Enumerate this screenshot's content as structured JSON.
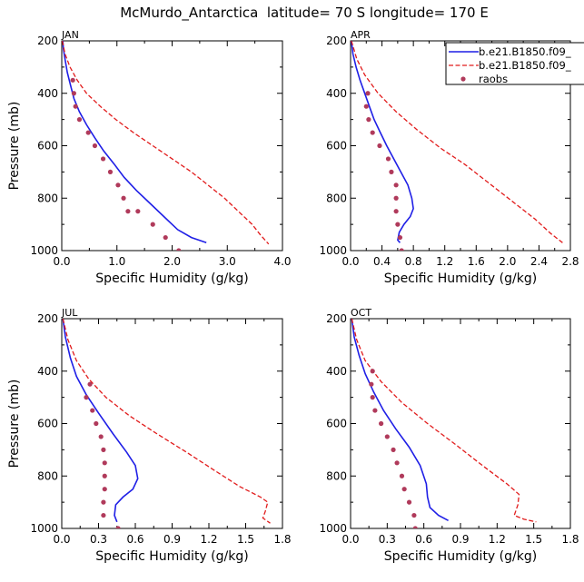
{
  "figure": {
    "title": "McMurdo_Antarctica  latitude= 70 S longitude= 170 E"
  },
  "colors": {
    "model1": "#1f1fe6",
    "model2": "#e11b1b",
    "raobs": "#b03a5b"
  },
  "legend": {
    "entries": [
      {
        "name": "b.e21.B1850.f09_",
        "style": "solid-line",
        "color": "#1f1fe6"
      },
      {
        "name": "b.e21.B1850.f09_",
        "style": "dashed-line",
        "color": "#e11b1b"
      },
      {
        "name": "raobs",
        "style": "dots",
        "color": "#b03a5b"
      }
    ]
  },
  "chart_data": [
    {
      "type": "line",
      "panel_label": "JAN",
      "xlabel": "Specific Humidity (g/kg)",
      "ylabel": "Pressure (mb)",
      "xlim": [
        0,
        4.0
      ],
      "ylim": [
        200,
        1000
      ],
      "y_inverted": true,
      "xticks": [
        "0.0",
        "1.0",
        "2.0",
        "3.0",
        "4.0"
      ],
      "xtick_values": [
        0,
        1,
        2,
        3,
        4
      ],
      "yticks": [
        "200",
        "400",
        "600",
        "800",
        "1000"
      ],
      "series": [
        {
          "legend_index": 0,
          "style": "solid",
          "points": [
            [
              0.02,
              200
            ],
            [
              0.03,
              230
            ],
            [
              0.06,
              270
            ],
            [
              0.1,
              320
            ],
            [
              0.16,
              370
            ],
            [
              0.22,
              420
            ],
            [
              0.32,
              470
            ],
            [
              0.45,
              520
            ],
            [
              0.6,
              570
            ],
            [
              0.76,
              620
            ],
            [
              0.95,
              670
            ],
            [
              1.13,
              720
            ],
            [
              1.35,
              770
            ],
            [
              1.6,
              820
            ],
            [
              1.85,
              870
            ],
            [
              2.1,
              920
            ],
            [
              2.35,
              950
            ],
            [
              2.62,
              970
            ]
          ]
        },
        {
          "legend_index": 1,
          "style": "dashed",
          "points": [
            [
              0.01,
              200
            ],
            [
              0.06,
              250
            ],
            [
              0.15,
              300
            ],
            [
              0.28,
              350
            ],
            [
              0.45,
              400
            ],
            [
              0.7,
              450
            ],
            [
              0.98,
              500
            ],
            [
              1.3,
              550
            ],
            [
              1.65,
              600
            ],
            [
              2.0,
              650
            ],
            [
              2.35,
              700
            ],
            [
              2.65,
              750
            ],
            [
              2.95,
              800
            ],
            [
              3.2,
              850
            ],
            [
              3.45,
              900
            ],
            [
              3.6,
              940
            ],
            [
              3.75,
              975
            ]
          ]
        },
        {
          "legend_index": 2,
          "style": "dots",
          "points": [
            [
              0.2,
              350
            ],
            [
              0.22,
              400
            ],
            [
              0.25,
              450
            ],
            [
              0.32,
              500
            ],
            [
              0.48,
              550
            ],
            [
              0.6,
              600
            ],
            [
              0.75,
              650
            ],
            [
              0.88,
              700
            ],
            [
              1.02,
              750
            ],
            [
              1.12,
              800
            ],
            [
              1.2,
              850
            ],
            [
              1.38,
              850
            ],
            [
              1.65,
              900
            ],
            [
              1.88,
              950
            ],
            [
              2.12,
              1000
            ]
          ]
        }
      ]
    },
    {
      "type": "line",
      "panel_label": "APR",
      "xlabel": "Specific Humidity (g/kg)",
      "ylabel": "",
      "xlim": [
        0,
        2.8
      ],
      "ylim": [
        200,
        1000
      ],
      "y_inverted": true,
      "xticks": [
        "0.0",
        "0.4",
        "0.8",
        "1.2",
        "1.6",
        "2.0",
        "2.4",
        "2.8"
      ],
      "xtick_values": [
        0,
        0.4,
        0.8,
        1.2,
        1.6,
        2.0,
        2.4,
        2.8
      ],
      "yticks": [
        "200",
        "400",
        "600",
        "800",
        "1000"
      ],
      "series": [
        {
          "legend_index": 0,
          "style": "solid",
          "points": [
            [
              0.01,
              200
            ],
            [
              0.03,
              250
            ],
            [
              0.07,
              300
            ],
            [
              0.12,
              350
            ],
            [
              0.18,
              400
            ],
            [
              0.24,
              450
            ],
            [
              0.3,
              500
            ],
            [
              0.38,
              550
            ],
            [
              0.46,
              600
            ],
            [
              0.55,
              650
            ],
            [
              0.64,
              700
            ],
            [
              0.73,
              750
            ],
            [
              0.78,
              800
            ],
            [
              0.8,
              840
            ],
            [
              0.76,
              870
            ],
            [
              0.68,
              900
            ],
            [
              0.62,
              930
            ],
            [
              0.6,
              960
            ],
            [
              0.63,
              970
            ]
          ]
        },
        {
          "legend_index": 1,
          "style": "dashed",
          "points": [
            [
              0.01,
              200
            ],
            [
              0.08,
              270
            ],
            [
              0.18,
              330
            ],
            [
              0.35,
              400
            ],
            [
              0.58,
              470
            ],
            [
              0.85,
              540
            ],
            [
              1.15,
              610
            ],
            [
              1.45,
              670
            ],
            [
              1.75,
              740
            ],
            [
              2.05,
              810
            ],
            [
              2.35,
              880
            ],
            [
              2.55,
              935
            ],
            [
              2.7,
              970
            ]
          ]
        },
        {
          "legend_index": 2,
          "style": "dots",
          "points": [
            [
              0.22,
              400
            ],
            [
              0.2,
              450
            ],
            [
              0.23,
              500
            ],
            [
              0.28,
              550
            ],
            [
              0.37,
              600
            ],
            [
              0.48,
              650
            ],
            [
              0.52,
              700
            ],
            [
              0.58,
              750
            ],
            [
              0.58,
              800
            ],
            [
              0.58,
              850
            ],
            [
              0.6,
              900
            ],
            [
              0.63,
              950
            ],
            [
              0.65,
              1000
            ]
          ]
        }
      ]
    },
    {
      "type": "line",
      "panel_label": "JUL",
      "xlabel": "Specific Humidity (g/kg)",
      "ylabel": "Pressure (mb)",
      "xlim": [
        0,
        1.8
      ],
      "ylim": [
        200,
        1000
      ],
      "y_inverted": true,
      "xticks": [
        "0.0",
        "0.3",
        "0.6",
        "0.9",
        "1.2",
        "1.5",
        "1.8"
      ],
      "xtick_values": [
        0,
        0.3,
        0.6,
        0.9,
        1.2,
        1.5,
        1.8
      ],
      "yticks": [
        "200",
        "400",
        "600",
        "800",
        "1000"
      ],
      "series": [
        {
          "legend_index": 0,
          "style": "solid",
          "points": [
            [
              0.01,
              200
            ],
            [
              0.03,
              270
            ],
            [
              0.07,
              350
            ],
            [
              0.12,
              420
            ],
            [
              0.2,
              490
            ],
            [
              0.3,
              560
            ],
            [
              0.42,
              640
            ],
            [
              0.53,
              710
            ],
            [
              0.6,
              760
            ],
            [
              0.62,
              810
            ],
            [
              0.58,
              850
            ],
            [
              0.5,
              880
            ],
            [
              0.44,
              910
            ],
            [
              0.43,
              950
            ],
            [
              0.45,
              975
            ]
          ]
        },
        {
          "legend_index": 1,
          "style": "dashed",
          "points": [
            [
              0.01,
              200
            ],
            [
              0.05,
              280
            ],
            [
              0.12,
              360
            ],
            [
              0.22,
              430
            ],
            [
              0.36,
              500
            ],
            [
              0.55,
              570
            ],
            [
              0.78,
              640
            ],
            [
              1.02,
              710
            ],
            [
              1.25,
              780
            ],
            [
              1.45,
              840
            ],
            [
              1.62,
              880
            ],
            [
              1.68,
              900
            ],
            [
              1.66,
              935
            ],
            [
              1.64,
              960
            ],
            [
              1.7,
              980
            ]
          ]
        },
        {
          "legend_index": 2,
          "style": "dots",
          "points": [
            [
              0.23,
              450
            ],
            [
              0.2,
              500
            ],
            [
              0.25,
              550
            ],
            [
              0.28,
              600
            ],
            [
              0.32,
              650
            ],
            [
              0.34,
              700
            ],
            [
              0.35,
              750
            ],
            [
              0.35,
              800
            ],
            [
              0.35,
              850
            ],
            [
              0.34,
              900
            ],
            [
              0.34,
              950
            ],
            [
              0.46,
              1000
            ]
          ]
        }
      ]
    },
    {
      "type": "line",
      "panel_label": "OCT",
      "xlabel": "Specific Humidity (g/kg)",
      "ylabel": "",
      "xlim": [
        0,
        1.8
      ],
      "ylim": [
        200,
        1000
      ],
      "y_inverted": true,
      "xticks": [
        "0.0",
        "0.3",
        "0.6",
        "0.9",
        "1.2",
        "1.5",
        "1.8"
      ],
      "xtick_values": [
        0,
        0.3,
        0.6,
        0.9,
        1.2,
        1.5,
        1.8
      ],
      "yticks": [
        "200",
        "400",
        "600",
        "800",
        "1000"
      ],
      "series": [
        {
          "legend_index": 0,
          "style": "solid",
          "points": [
            [
              0.01,
              200
            ],
            [
              0.03,
              270
            ],
            [
              0.07,
              340
            ],
            [
              0.12,
              410
            ],
            [
              0.19,
              480
            ],
            [
              0.27,
              550
            ],
            [
              0.37,
              620
            ],
            [
              0.48,
              690
            ],
            [
              0.57,
              760
            ],
            [
              0.62,
              830
            ],
            [
              0.63,
              880
            ],
            [
              0.65,
              920
            ],
            [
              0.72,
              950
            ],
            [
              0.8,
              970
            ]
          ]
        },
        {
          "legend_index": 1,
          "style": "dashed",
          "points": [
            [
              0.01,
              200
            ],
            [
              0.05,
              280
            ],
            [
              0.12,
              360
            ],
            [
              0.25,
              440
            ],
            [
              0.42,
              520
            ],
            [
              0.63,
              600
            ],
            [
              0.86,
              680
            ],
            [
              1.08,
              760
            ],
            [
              1.28,
              830
            ],
            [
              1.38,
              870
            ],
            [
              1.37,
              910
            ],
            [
              1.34,
              950
            ],
            [
              1.42,
              965
            ],
            [
              1.52,
              975
            ]
          ]
        },
        {
          "legend_index": 2,
          "style": "dots",
          "points": [
            [
              0.18,
              400
            ],
            [
              0.17,
              450
            ],
            [
              0.18,
              500
            ],
            [
              0.2,
              550
            ],
            [
              0.25,
              600
            ],
            [
              0.3,
              650
            ],
            [
              0.35,
              700
            ],
            [
              0.38,
              750
            ],
            [
              0.42,
              800
            ],
            [
              0.44,
              850
            ],
            [
              0.48,
              900
            ],
            [
              0.52,
              950
            ],
            [
              0.53,
              1000
            ]
          ]
        }
      ]
    }
  ]
}
